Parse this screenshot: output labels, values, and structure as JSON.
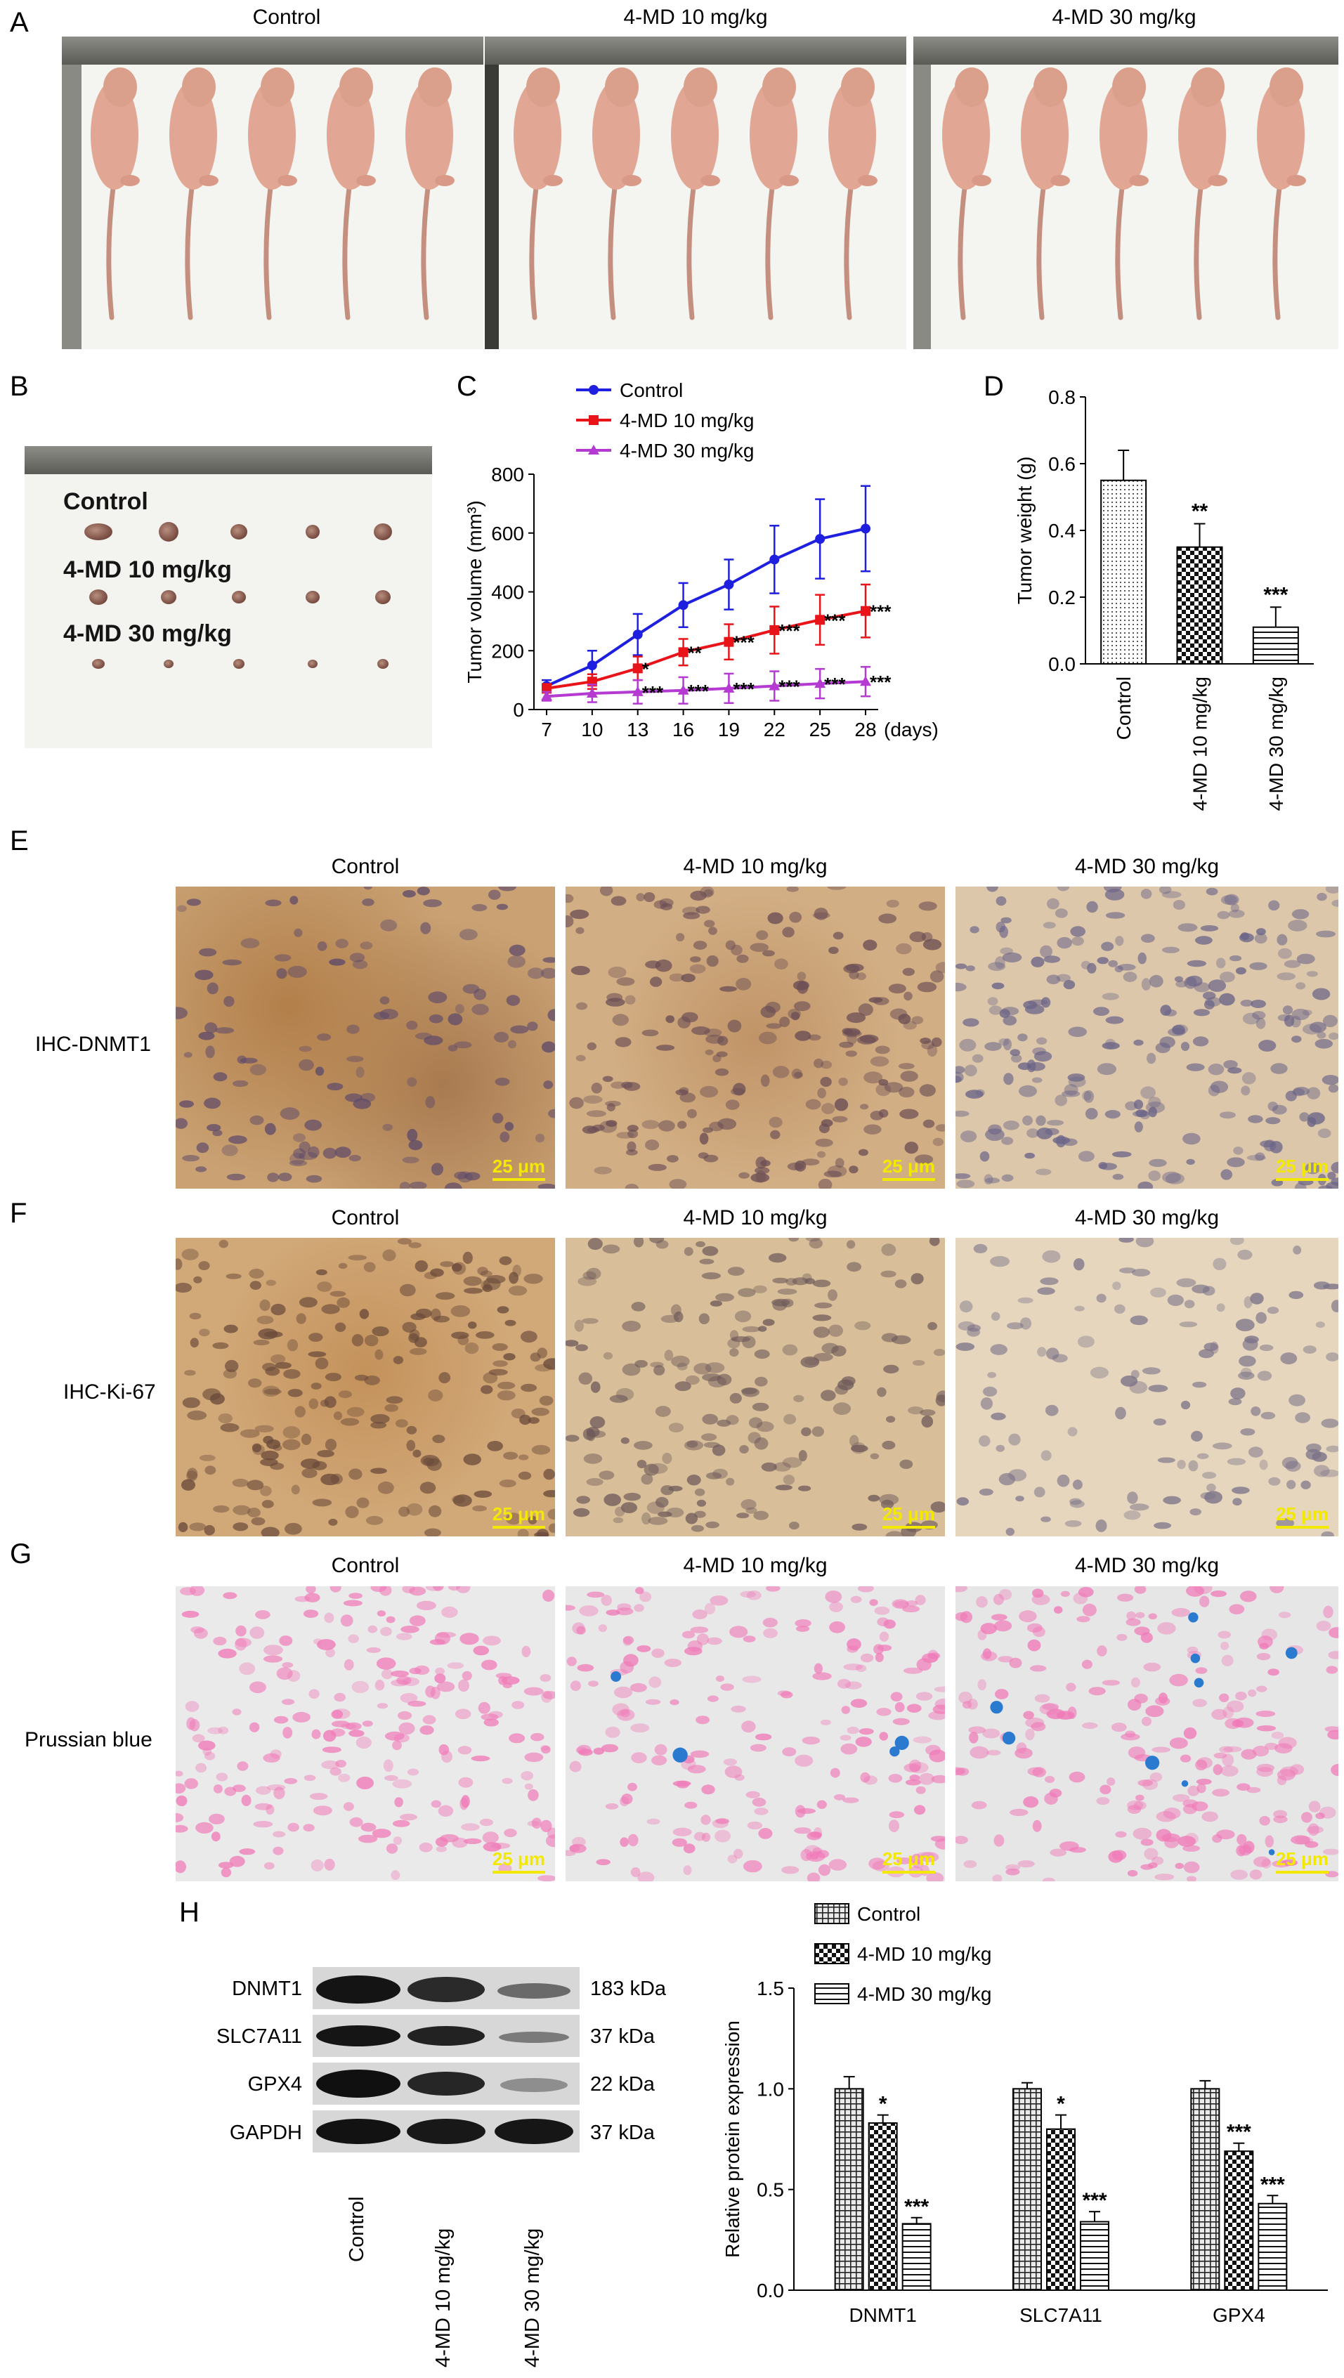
{
  "panels": {
    "A": "A",
    "B": "B",
    "C": "C",
    "D": "D",
    "E": "E",
    "F": "F",
    "G": "G",
    "H": "H"
  },
  "groups": [
    "Control",
    "4-MD 10 mg/kg",
    "4-MD 30 mg/kg"
  ],
  "panel_b": {
    "labels": [
      "Control",
      "4-MD 10 mg/kg",
      "4-MD 30 mg/kg"
    ]
  },
  "ihc": {
    "row_e": "IHC-DNMT1",
    "row_f": "IHC-Ki-67",
    "row_g": "Prussian blue",
    "scale": "25 μm"
  },
  "blot": {
    "proteins": [
      "DNMT1",
      "SLC7A11",
      "GPX4",
      "GAPDH"
    ],
    "kda": [
      "183 kDa",
      "37 kDa",
      "22 kDa",
      "37 kDa"
    ],
    "lanes": [
      "Control",
      "4-MD 10 mg/kg",
      "4-MD 30 mg/kg"
    ]
  },
  "colors": {
    "control": "#1f1fe0",
    "md10": "#e8141a",
    "md30": "#b43ad2",
    "scale": "#f2e800"
  },
  "chart_data": [
    {
      "id": "C",
      "type": "line",
      "xlabel": "(days)",
      "ylabel": "Tumor volume (mm³)",
      "x": [
        7,
        10,
        13,
        16,
        19,
        22,
        25,
        28
      ],
      "ylim": [
        0,
        800
      ],
      "yticks": [
        0,
        200,
        400,
        600,
        800
      ],
      "legend": "top-left",
      "series": [
        {
          "name": "Control",
          "values": [
            80,
            150,
            255,
            355,
            425,
            510,
            580,
            615
          ],
          "errors": [
            20,
            50,
            70,
            75,
            85,
            115,
            135,
            145
          ],
          "marker": "circle",
          "sig": [
            "",
            "",
            "",
            "",
            "",
            "",
            "",
            ""
          ]
        },
        {
          "name": "4-MD 10 mg/kg",
          "values": [
            72,
            95,
            140,
            195,
            230,
            270,
            305,
            335
          ],
          "errors": [
            15,
            25,
            40,
            45,
            60,
            80,
            85,
            90
          ],
          "marker": "square",
          "sig": [
            "",
            "",
            "*",
            "**",
            "***",
            "***",
            "***",
            "***"
          ]
        },
        {
          "name": "4-MD 30 mg/kg",
          "values": [
            45,
            55,
            60,
            65,
            72,
            80,
            88,
            95
          ],
          "errors": [
            15,
            30,
            40,
            45,
            50,
            50,
            50,
            50
          ],
          "marker": "triangle",
          "sig": [
            "",
            "",
            "***",
            "***",
            "***",
            "***",
            "***",
            "***"
          ]
        }
      ]
    },
    {
      "id": "D",
      "type": "bar",
      "ylabel": "Tumor weight (g)",
      "categories": [
        "Control",
        "4-MD 10 mg/kg",
        "4-MD 30 mg/kg"
      ],
      "values": [
        0.55,
        0.35,
        0.11
      ],
      "errors": [
        0.09,
        0.07,
        0.06
      ],
      "sig": [
        "",
        "**",
        "***"
      ],
      "ylim": [
        0,
        0.8
      ],
      "yticks": [
        "0.0",
        "0.2",
        "0.4",
        "0.6",
        "0.8"
      ]
    },
    {
      "id": "H",
      "type": "bar",
      "ylabel": "Relative protein expression",
      "categories": [
        "DNMT1",
        "SLC7A11",
        "GPX4"
      ],
      "ylim": [
        0,
        1.5
      ],
      "yticks": [
        "0.0",
        "0.5",
        "1.0",
        "1.5"
      ],
      "legend": "top",
      "series": [
        {
          "name": "Control",
          "values": [
            1.0,
            1.0,
            1.0
          ],
          "errors": [
            0.06,
            0.03,
            0.04
          ],
          "sig": [
            "",
            "",
            ""
          ]
        },
        {
          "name": "4-MD 10 mg/kg",
          "values": [
            0.83,
            0.8,
            0.69
          ],
          "errors": [
            0.04,
            0.07,
            0.04
          ],
          "sig": [
            "*",
            "*",
            "***"
          ]
        },
        {
          "name": "4-MD 30 mg/kg",
          "values": [
            0.33,
            0.34,
            0.43
          ],
          "errors": [
            0.03,
            0.05,
            0.04
          ],
          "sig": [
            "***",
            "***",
            "***"
          ]
        }
      ]
    }
  ]
}
